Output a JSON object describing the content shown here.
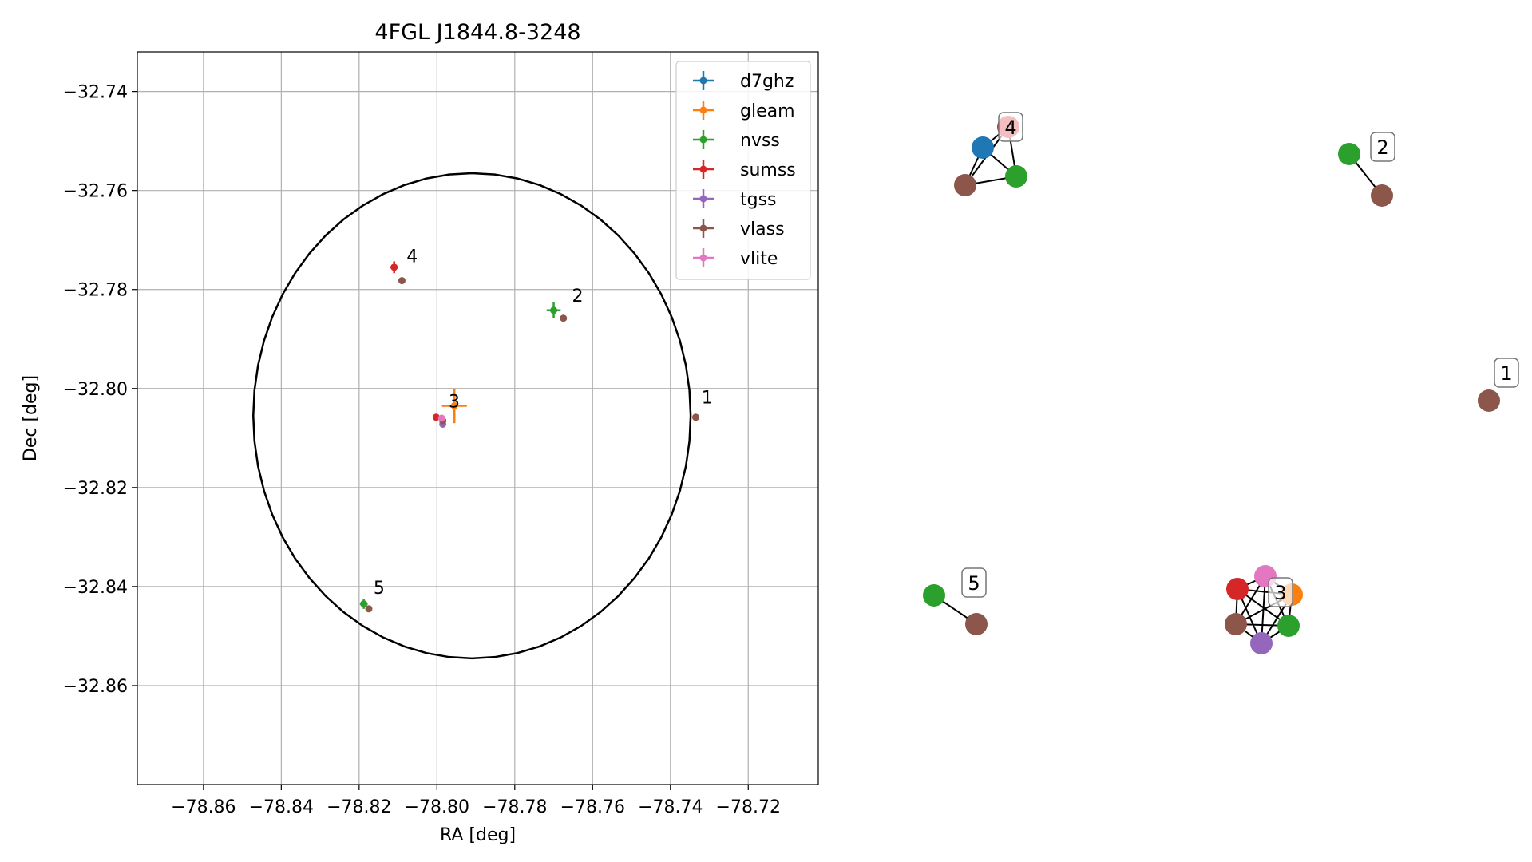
{
  "chart_data": [
    {
      "type": "scatter",
      "title": "4FGL J1844.8-3248",
      "xlabel": "RA [deg]",
      "ylabel": "Dec [deg]",
      "xlim": [
        -78.877,
        -78.702
      ],
      "ylim": [
        -32.88,
        -32.732
      ],
      "xticks": [
        -78.86,
        -78.84,
        -78.82,
        -78.8,
        -78.78,
        -78.76,
        -78.74,
        -78.72
      ],
      "xtick_labels": [
        "−78.86",
        "−78.84",
        "−78.82",
        "−78.80",
        "−78.78",
        "−78.76",
        "−78.74",
        "−78.72"
      ],
      "yticks": [
        -32.74,
        -32.76,
        -32.78,
        -32.8,
        -32.82,
        -32.84,
        -32.86
      ],
      "ytick_labels": [
        "−32.74",
        "−32.76",
        "−32.78",
        "−32.80",
        "−32.82",
        "−32.84",
        "−32.86"
      ],
      "grid": true,
      "legend_position": "top-right",
      "ellipse": {
        "center_ra": -78.791,
        "center_dec": -32.8055,
        "semi_ra": 0.0562,
        "semi_dec": 0.049,
        "color": "#000000"
      },
      "series": [
        {
          "name": "d7ghz",
          "color": "#1f77b4",
          "points": []
        },
        {
          "name": "gleam",
          "color": "#ff7f0e",
          "points": [
            {
              "x": -78.7955,
              "y": -32.8035,
              "xerr": 0.0032,
              "yerr": 0.0035
            }
          ]
        },
        {
          "name": "nvss",
          "color": "#2ca02c",
          "points": [
            {
              "x": -78.77,
              "y": -32.7842,
              "xerr": 0.0018,
              "yerr": 0.0016
            },
            {
              "x": -78.8188,
              "y": -32.8435,
              "xerr": 0.001,
              "yerr": 0.001
            }
          ]
        },
        {
          "name": "sumss",
          "color": "#d62728",
          "points": [
            {
              "x": -78.811,
              "y": -32.7755,
              "xerr": 0.001,
              "yerr": 0.0012
            },
            {
              "x": -78.8002,
              "y": -32.8058,
              "xerr": 0.0005,
              "yerr": 0.0005
            }
          ]
        },
        {
          "name": "tgss",
          "color": "#9467bd",
          "points": [
            {
              "x": -78.7985,
              "y": -32.8072,
              "xerr": 0.0003,
              "yerr": 0.0003
            }
          ]
        },
        {
          "name": "vlass",
          "color": "#8c564b",
          "points": [
            {
              "x": -78.809,
              "y": -32.7782,
              "xerr": 0.0002,
              "yerr": 0.0002
            },
            {
              "x": -78.7675,
              "y": -32.7858,
              "xerr": 0.0002,
              "yerr": 0.0002
            },
            {
              "x": -78.7985,
              "y": -32.8065,
              "xerr": 0.0002,
              "yerr": 0.0002
            },
            {
              "x": -78.7335,
              "y": -32.8058,
              "xerr": 0.0002,
              "yerr": 0.0002
            },
            {
              "x": -78.8175,
              "y": -32.8445,
              "xerr": 0.0002,
              "yerr": 0.0002
            }
          ]
        },
        {
          "name": "vlite",
          "color": "#e377c2",
          "points": [
            {
              "x": -78.7988,
              "y": -32.806,
              "xerr": 0.0006,
              "yerr": 0.0006
            }
          ]
        }
      ],
      "annotations": [
        {
          "text": "4",
          "x": -78.8078,
          "y": -32.7745
        },
        {
          "text": "2",
          "x": -78.7653,
          "y": -32.7825
        },
        {
          "text": "3",
          "x": -78.797,
          "y": -32.8038
        },
        {
          "text": "1",
          "x": -78.732,
          "y": -32.803
        },
        {
          "text": "5",
          "x": -78.8163,
          "y": -32.8415
        }
      ]
    },
    {
      "type": "network",
      "groups": [
        {
          "label": "4",
          "nodes": [
            "#d62728",
            "#1f77b4",
            "#2ca02c",
            "#8c564b"
          ],
          "edges": [
            [
              0,
              1
            ],
            [
              0,
              2
            ],
            [
              0,
              3
            ],
            [
              1,
              2
            ],
            [
              1,
              3
            ],
            [
              2,
              3
            ]
          ]
        },
        {
          "label": "2",
          "nodes": [
            "#2ca02c",
            "#8c564b"
          ],
          "edges": [
            [
              0,
              1
            ]
          ]
        },
        {
          "label": "1",
          "nodes": [
            "#8c564b"
          ],
          "edges": []
        },
        {
          "label": "5",
          "nodes": [
            "#2ca02c",
            "#8c564b"
          ],
          "edges": [
            [
              0,
              1
            ]
          ]
        },
        {
          "label": "3",
          "nodes": [
            "#e377c2",
            "#d62728",
            "#ff7f0e",
            "#8c564b",
            "#2ca02c",
            "#9467bd"
          ],
          "edges": "complete"
        }
      ]
    }
  ]
}
